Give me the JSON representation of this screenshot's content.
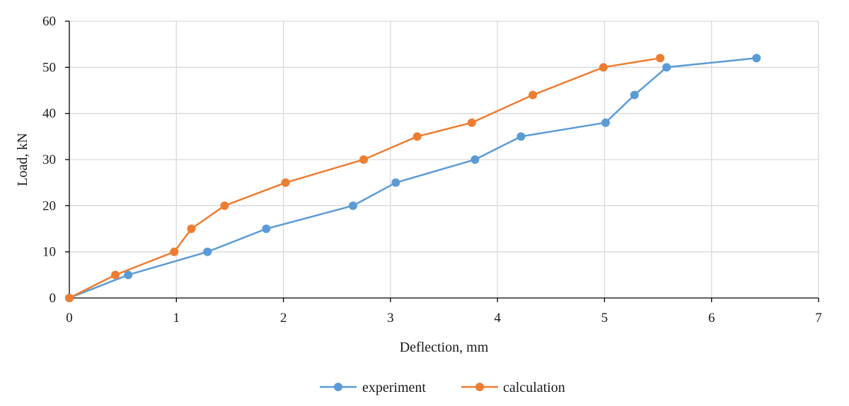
{
  "chart_data": {
    "type": "line",
    "title": "",
    "xlabel": "Deflection, mm",
    "ylabel": "Load, kN",
    "xlim": [
      0,
      7
    ],
    "ylim": [
      0,
      60
    ],
    "x_ticks": [
      0,
      1,
      2,
      3,
      4,
      5,
      6,
      7
    ],
    "y_ticks": [
      0,
      10,
      20,
      30,
      40,
      50,
      60
    ],
    "grid": true,
    "legend_position": "bottom-center",
    "series": [
      {
        "name": "experiment",
        "color": "#5b9bd5",
        "x": [
          0,
          0.55,
          1.29,
          1.84,
          2.65,
          3.05,
          3.79,
          4.22,
          5.01,
          5.28,
          5.58,
          6.42
        ],
        "y": [
          0,
          5,
          10,
          15,
          20,
          25,
          30,
          35,
          38,
          44,
          50,
          52
        ]
      },
      {
        "name": "calculation",
        "color": "#ed7d31",
        "x": [
          0,
          0.43,
          0.98,
          1.14,
          1.45,
          2.02,
          2.75,
          3.25,
          3.76,
          4.33,
          4.99,
          5.52
        ],
        "y": [
          0,
          5,
          10,
          15,
          20,
          25,
          30,
          35,
          38,
          44,
          50,
          52
        ]
      }
    ]
  }
}
